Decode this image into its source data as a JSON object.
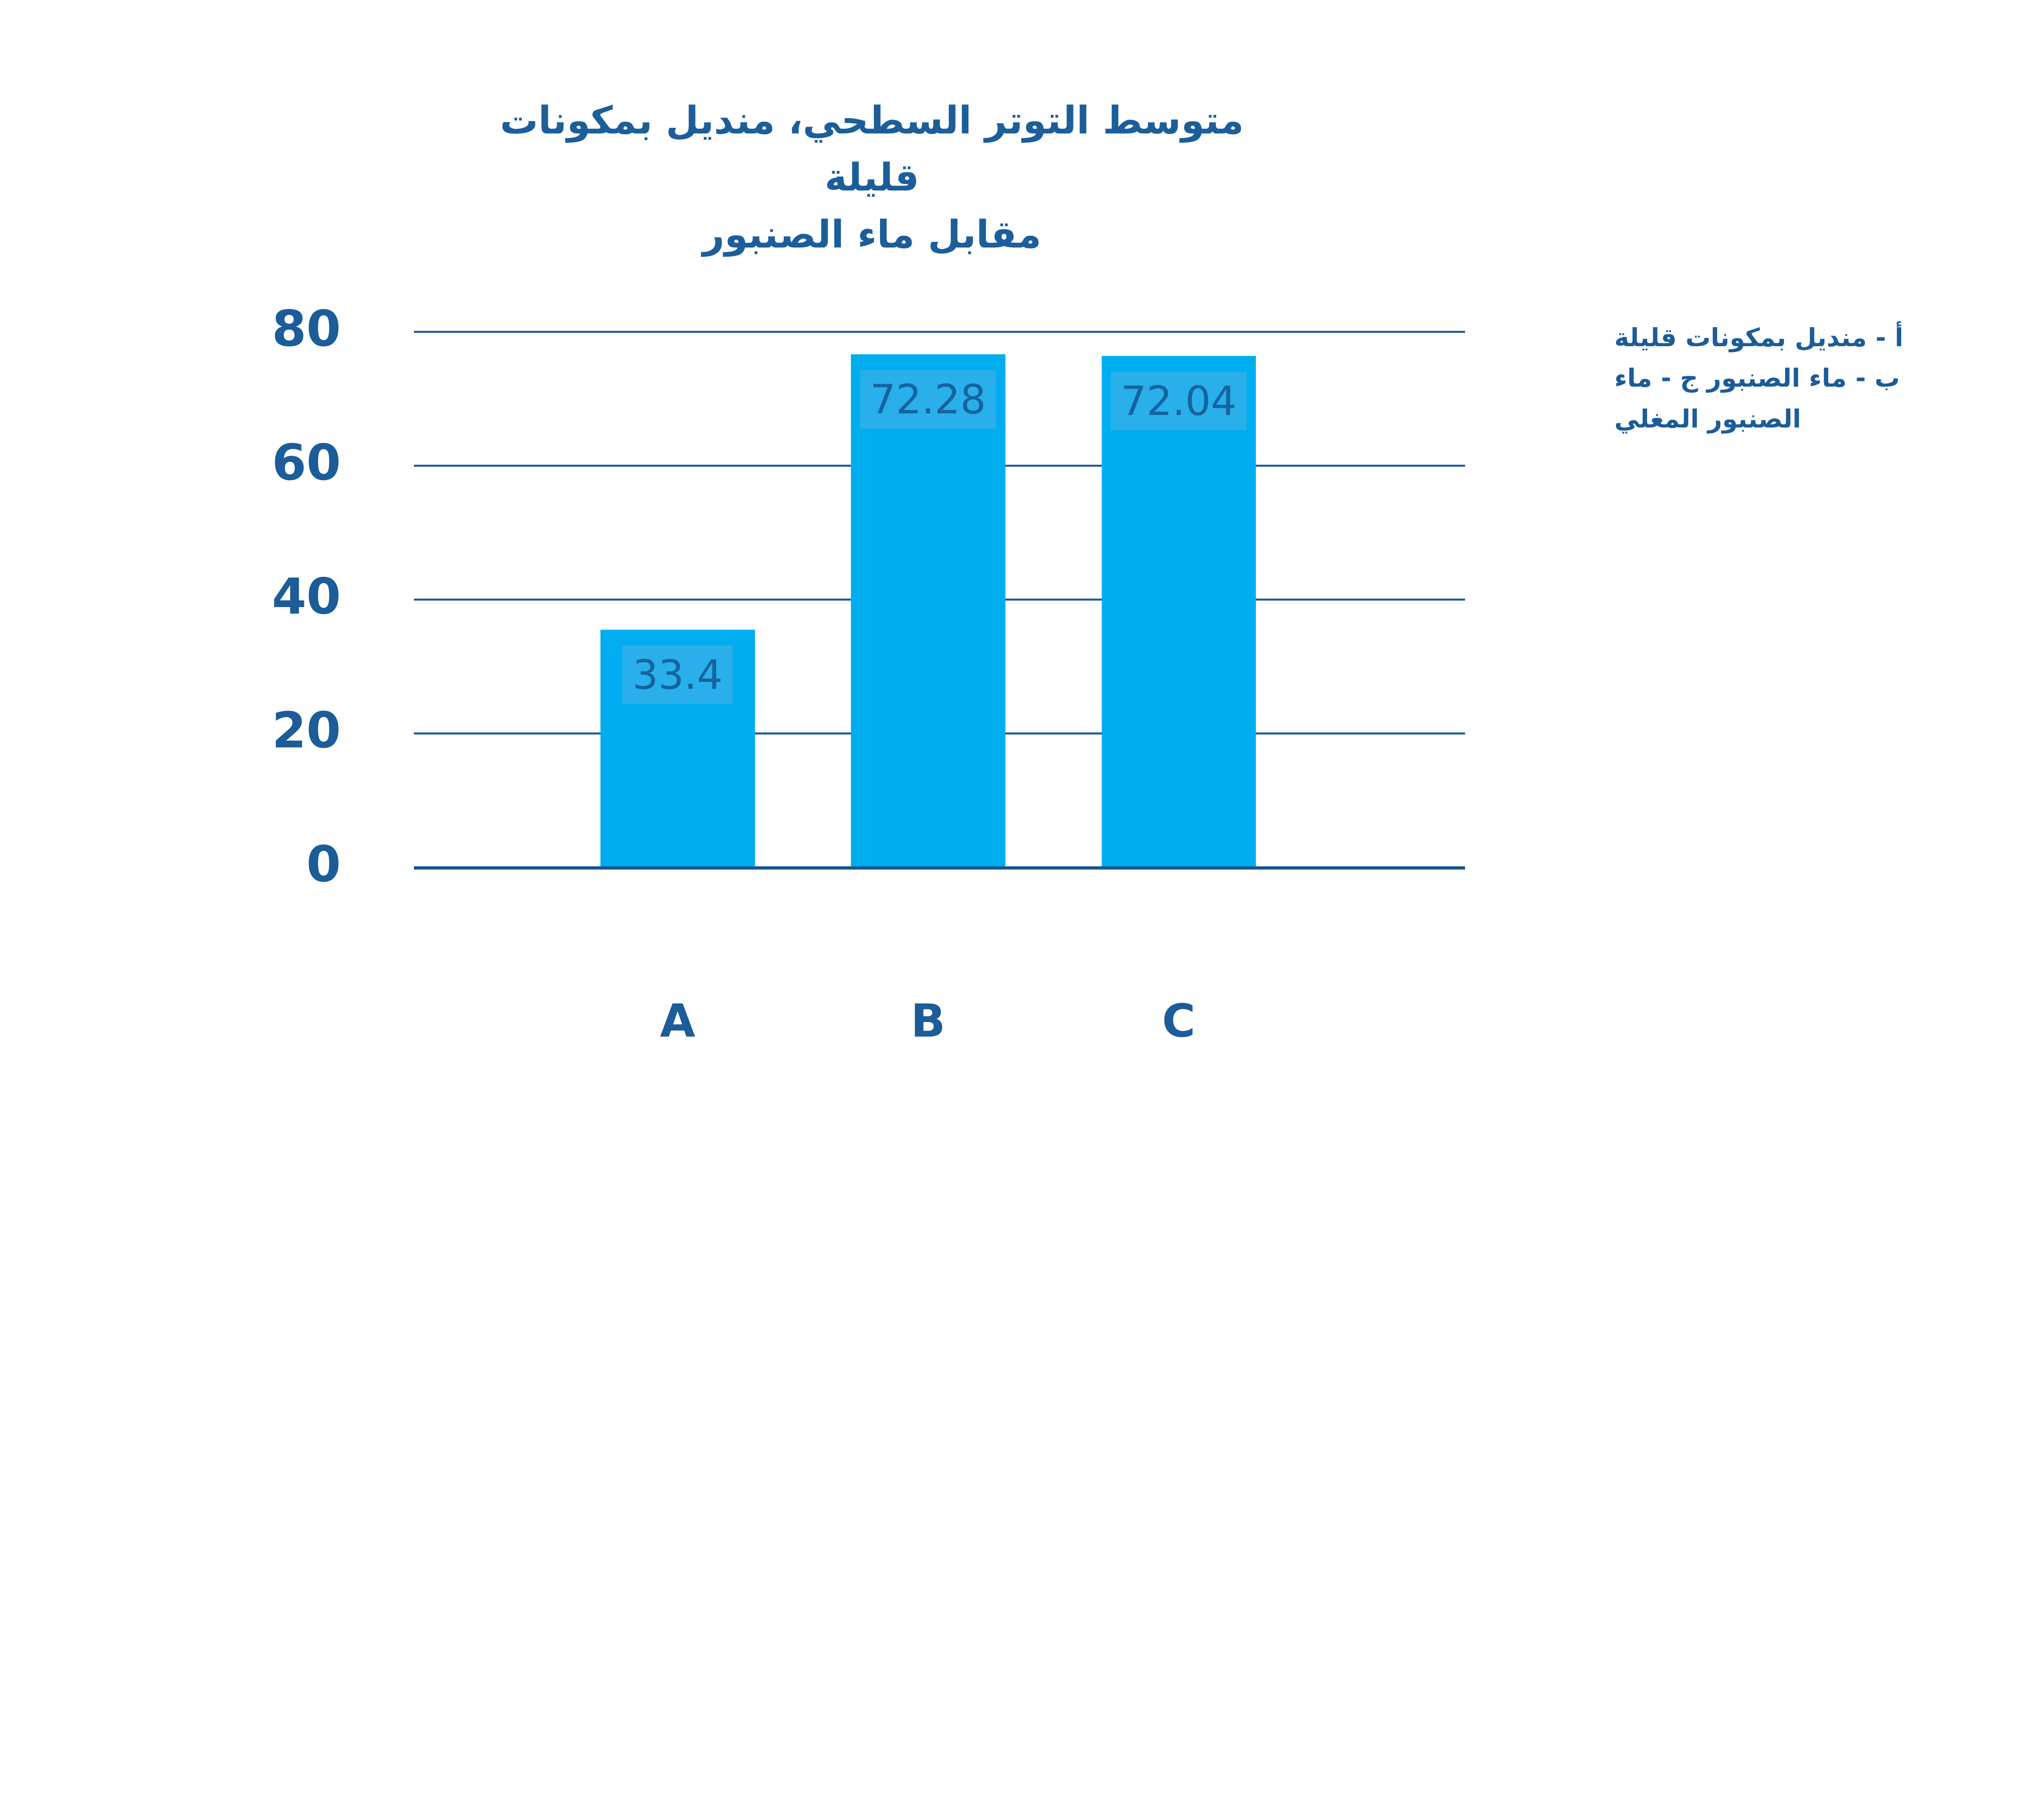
{
  "title": {
    "lines": [
      "متوسط التوتر السطحي، منديل بمكونات قليلة",
      "مقابل ماء الصنبور"
    ]
  },
  "legend": {
    "note": "أ - منديل بمكونات قليلة ب - ماء الصنبور ج - ماء الصنبور المغلي"
  },
  "chart_data": {
    "type": "bar",
    "title": "متوسط التوتر السطحي، منديل بمكونات قليلة مقابل ماء الصنبور",
    "categories": [
      "A",
      "B",
      "C"
    ],
    "values": [
      33.4,
      72.28,
      72.04
    ],
    "value_labels": [
      "33.4",
      "72.28",
      "72.04"
    ],
    "yticks": [
      80,
      60,
      40,
      20,
      0
    ],
    "ylim": [
      0,
      80
    ],
    "xlabel": "",
    "ylabel": "",
    "grid": true,
    "legend_position": "right",
    "annotation": "أ - منديل بمكونات قليلة ب - ماء الصنبور ج - ماء الصنبور المغلي",
    "colors": {
      "bar": "#00AEEF",
      "value_chip_bg": "#29AFEA",
      "value_text": "#14649F",
      "axis_text": "#1B5C99",
      "title_text": "#1C5E9A",
      "gridline": "#1E5C99",
      "baseline": "#14568F"
    }
  }
}
